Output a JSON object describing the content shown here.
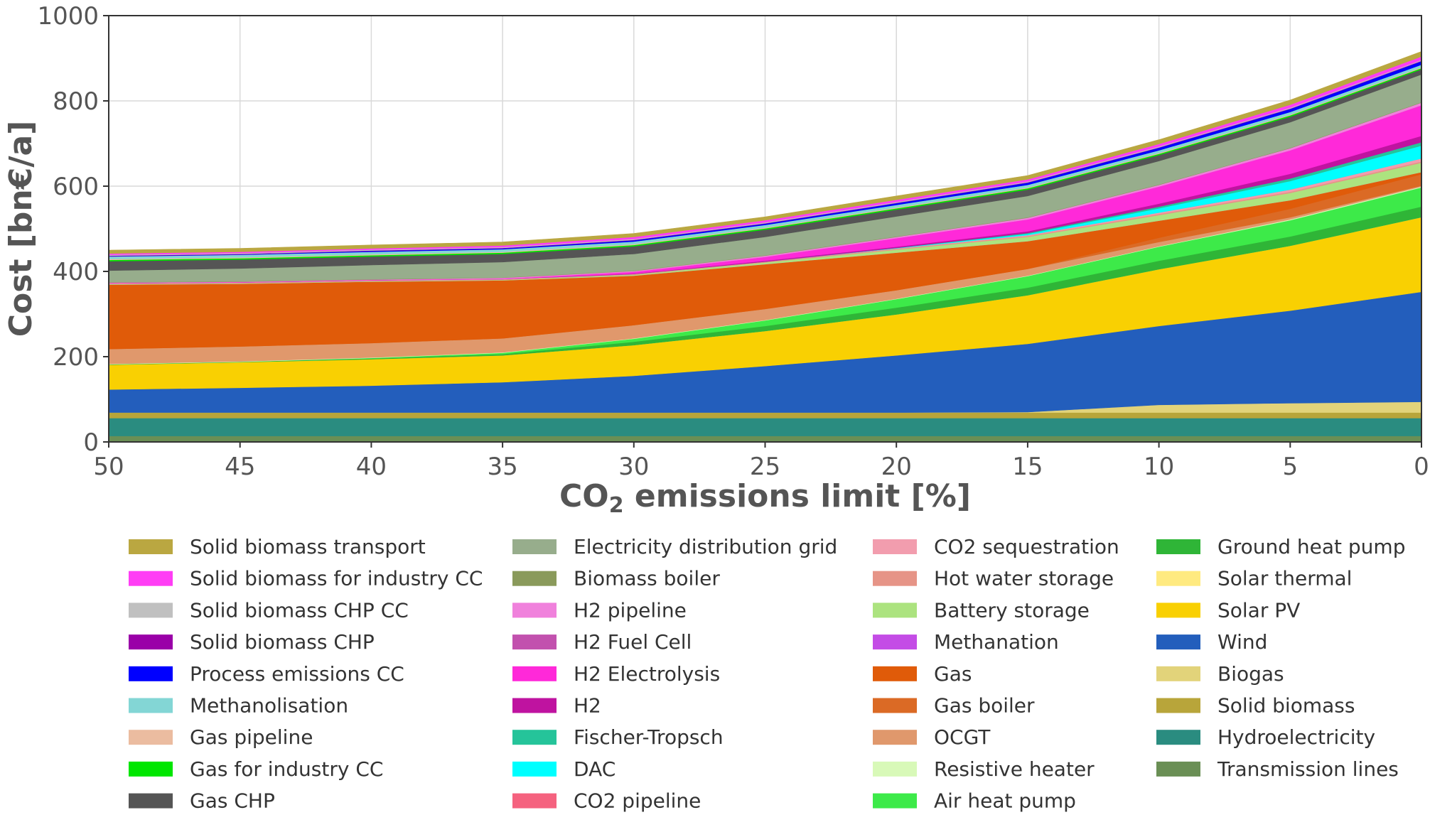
{
  "chart_data": {
    "type": "area",
    "stacked": true,
    "xlabel": "CO",
    "xlabel_sub": "2",
    "xlabel_rest": " emissions limit [%]",
    "ylabel": "Cost [bn€/a]",
    "x": [
      50,
      45,
      40,
      35,
      30,
      25,
      20,
      15,
      10,
      5,
      0
    ],
    "x_ticks": [
      "50",
      "45",
      "40",
      "35",
      "30",
      "25",
      "20",
      "15",
      "10",
      "5",
      "0"
    ],
    "y_ticks": [
      "0",
      "200",
      "400",
      "600",
      "800",
      "1000"
    ],
    "xlim": [
      50,
      0
    ],
    "ylim": [
      0,
      1000
    ],
    "grid": true,
    "legend_position": "below",
    "legend_columns": [
      [
        "Solid biomass transport",
        "Solid biomass for industry CC",
        "Solid biomass CHP CC",
        "Solid biomass CHP",
        "Process emissions CC",
        "Methanolisation",
        "Gas pipeline",
        "Gas for industry CC",
        "Gas CHP"
      ],
      [
        "Electricity distribution grid",
        "Biomass boiler",
        "H2 pipeline",
        "H2 Fuel Cell",
        "H2 Electrolysis",
        "H2",
        "Fischer-Tropsch",
        "DAC",
        "CO2 pipeline"
      ],
      [
        "CO2 sequestration",
        "Hot water storage",
        "Battery storage",
        "Methanation",
        "Gas",
        "Gas boiler",
        "OCGT",
        "Resistive heater",
        "Air heat pump"
      ],
      [
        "Ground heat pump",
        "Solar thermal",
        "Solar PV",
        "Wind",
        "Biogas",
        "Solid biomass",
        "Hydroelectricity",
        "Transmission lines"
      ]
    ],
    "series": [
      {
        "name": "Transmission lines",
        "color": "#6a8f55",
        "values": [
          14,
          14,
          14,
          14,
          14,
          14,
          14,
          14,
          14,
          14,
          14
        ]
      },
      {
        "name": "Hydroelectricity",
        "color": "#2a8c80",
        "values": [
          42,
          42,
          42,
          42,
          42,
          42,
          42,
          42,
          42,
          42,
          42
        ]
      },
      {
        "name": "Solid biomass",
        "color": "#b8a53a",
        "values": [
          13,
          13,
          13,
          13,
          13,
          13,
          13,
          13,
          13,
          13,
          13
        ]
      },
      {
        "name": "Biogas",
        "color": "#e2d37a",
        "values": [
          0,
          0,
          0,
          0,
          0,
          0,
          0,
          1,
          18,
          22,
          25
        ]
      },
      {
        "name": "Wind",
        "color": "#235ebc",
        "values": [
          54,
          58,
          63,
          71,
          86,
          109,
          134,
          160,
          185,
          217,
          258
        ]
      },
      {
        "name": "Solar PV",
        "color": "#f9d002",
        "values": [
          58,
          60,
          62,
          63,
          72,
          82,
          96,
          114,
          133,
          152,
          175
        ]
      },
      {
        "name": "Solar thermal",
        "color": "#ffea80",
        "values": [
          0,
          0,
          0,
          0,
          0,
          0,
          0,
          0,
          0,
          0,
          0
        ]
      },
      {
        "name": "Ground heat pump",
        "color": "#2fb537",
        "values": [
          1,
          1,
          2,
          3,
          8,
          12,
          16,
          18,
          20,
          22,
          25
        ]
      },
      {
        "name": "Air heat pump",
        "color": "#3dea49",
        "values": [
          0,
          0,
          1,
          3,
          7,
          13,
          20,
          27,
          33,
          38,
          45
        ]
      },
      {
        "name": "Resistive heater",
        "color": "#d8f9b8",
        "values": [
          1,
          1,
          1,
          1,
          1,
          1,
          1,
          1,
          1,
          2,
          2
        ]
      },
      {
        "name": "OCGT",
        "color": "#e0986c",
        "values": [
          35,
          35,
          34,
          33,
          31,
          26,
          20,
          16,
          10,
          5,
          2
        ]
      },
      {
        "name": "Gas boiler",
        "color": "#db6a25",
        "values": [
          0,
          0,
          0,
          0,
          0,
          0,
          0,
          0,
          10,
          20,
          27
        ]
      },
      {
        "name": "Gas",
        "color": "#e05b09",
        "values": [
          151,
          147,
          144,
          136,
          116,
          105,
          88,
          65,
          40,
          20,
          5
        ]
      },
      {
        "name": "Methanation",
        "color": "#c44ce6",
        "values": [
          0,
          0,
          0,
          0,
          0,
          0,
          0,
          0,
          0,
          0,
          0
        ]
      },
      {
        "name": "Battery storage",
        "color": "#ace37f",
        "values": [
          1,
          1,
          1,
          1,
          2,
          4,
          7,
          10,
          13,
          17,
          22
        ]
      },
      {
        "name": "Hot water storage",
        "color": "#e69487",
        "values": [
          2,
          2,
          2,
          2,
          2,
          2,
          2,
          2,
          3,
          3,
          3
        ]
      },
      {
        "name": "CO2 sequestration",
        "color": "#f29dae",
        "values": [
          0,
          0,
          0,
          0,
          0,
          0,
          1,
          2,
          3,
          5,
          7
        ]
      },
      {
        "name": "CO2 pipeline",
        "color": "#f5627f",
        "values": [
          0,
          0,
          0,
          0,
          0,
          0,
          0,
          0,
          0,
          0,
          0
        ]
      },
      {
        "name": "DAC",
        "color": "#00ffff",
        "values": [
          0,
          0,
          0,
          0,
          0,
          0,
          1,
          3,
          10,
          20,
          30
        ]
      },
      {
        "name": "Fischer-Tropsch",
        "color": "#25c49a",
        "values": [
          0,
          0,
          0,
          0,
          0,
          0,
          0,
          2,
          4,
          6,
          8
        ]
      },
      {
        "name": "H2",
        "color": "#bf13a0",
        "values": [
          0,
          0,
          0,
          0,
          1,
          2,
          3,
          4,
          7,
          11,
          15
        ]
      },
      {
        "name": "H2 Electrolysis",
        "color": "#ff29d9",
        "values": [
          1,
          1,
          1,
          1,
          4,
          9,
          20,
          28,
          40,
          55,
          72
        ]
      },
      {
        "name": "H2 Fuel Cell",
        "color": "#c251ae",
        "values": [
          0,
          0,
          0,
          0,
          0,
          0,
          0,
          0,
          0,
          0,
          0
        ]
      },
      {
        "name": "H2 pipeline",
        "color": "#f081dc",
        "values": [
          1,
          1,
          1,
          2,
          2,
          3,
          3,
          4,
          4,
          5,
          6
        ]
      },
      {
        "name": "Biomass boiler",
        "color": "#8a9a5b",
        "values": [
          1,
          1,
          1,
          1,
          1,
          1,
          1,
          1,
          1,
          1,
          1
        ]
      },
      {
        "name": "Electricity distribution grid",
        "color": "#97ad8c",
        "values": [
          27,
          30,
          33,
          36,
          39,
          43,
          47,
          50,
          55,
          60,
          65
        ]
      },
      {
        "name": "Gas CHP",
        "color": "#555555",
        "values": [
          22,
          21,
          20,
          19,
          18,
          17,
          16,
          15,
          14,
          13,
          12
        ]
      },
      {
        "name": "Gas for industry CC",
        "color": "#00e600",
        "values": [
          3,
          3,
          3,
          3,
          3,
          3,
          3,
          3,
          3,
          3,
          3
        ]
      },
      {
        "name": "Gas pipeline",
        "color": "#ebbca0",
        "values": [
          2,
          2,
          2,
          2,
          2,
          2,
          2,
          2,
          2,
          2,
          2
        ]
      },
      {
        "name": "Methanolisation",
        "color": "#83d6d5",
        "values": [
          6,
          6,
          6,
          6,
          6,
          6,
          6,
          6,
          6,
          6,
          6
        ]
      },
      {
        "name": "Process emissions CC",
        "color": "#0000ff",
        "values": [
          1,
          1,
          2,
          2,
          3,
          3,
          4,
          5,
          6,
          7,
          8
        ]
      },
      {
        "name": "Solid biomass CHP",
        "color": "#9a00a8",
        "values": [
          1,
          1,
          1,
          1,
          1,
          1,
          1,
          1,
          1,
          1,
          1
        ]
      },
      {
        "name": "Solid biomass CHP CC",
        "color": "#c0c0c0",
        "values": [
          2,
          2,
          2,
          2,
          2,
          2,
          2,
          2,
          2,
          2,
          2
        ]
      },
      {
        "name": "Solid biomass for industry CC",
        "color": "#ff3df5",
        "values": [
          3,
          3,
          3,
          4,
          5,
          5,
          5,
          5,
          6,
          7,
          8
        ]
      },
      {
        "name": "Solid biomass transport",
        "color": "#baa741",
        "values": [
          8,
          8,
          8,
          8,
          8,
          8,
          9,
          9,
          10,
          11,
          12
        ]
      }
    ]
  }
}
